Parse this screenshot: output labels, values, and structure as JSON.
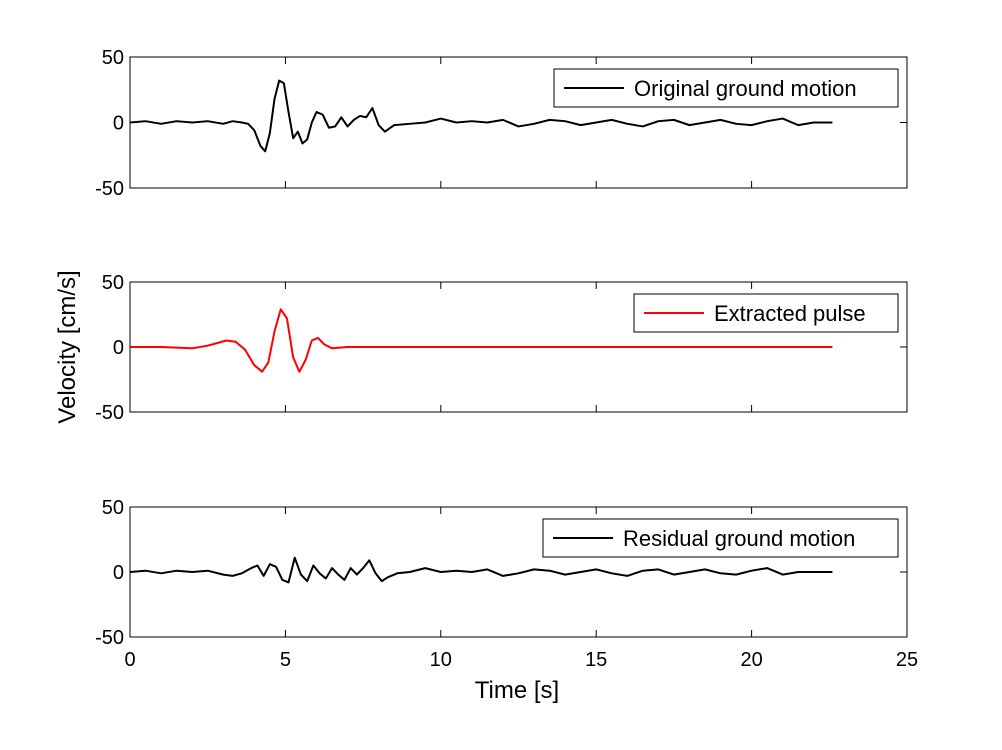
{
  "chart_data": {
    "type": "line",
    "shared_xlabel": "Time [s]",
    "shared_ylabel": "Velocity [cm/s]",
    "x_tick_labels": [
      "0",
      "5",
      "10",
      "15",
      "20",
      "25"
    ],
    "xlim": [
      0,
      25
    ],
    "panels": [
      {
        "ylim": [
          -50,
          50
        ],
        "y_tick_labels": [
          "50",
          "0",
          "-50"
        ],
        "legend": "Original ground motion",
        "legend_position": "top-right",
        "color": "#000000",
        "series": {
          "name": "Original ground motion",
          "x": [
            0,
            0.5,
            1,
            1.5,
            2,
            2.5,
            3,
            3.3,
            3.6,
            3.8,
            4.0,
            4.2,
            4.35,
            4.5,
            4.65,
            4.8,
            4.95,
            5.1,
            5.25,
            5.4,
            5.55,
            5.7,
            5.85,
            6.0,
            6.2,
            6.4,
            6.6,
            6.8,
            7.0,
            7.2,
            7.4,
            7.6,
            7.8,
            8.0,
            8.2,
            8.5,
            9,
            9.5,
            10,
            10.5,
            11,
            11.5,
            12,
            12.5,
            13,
            13.5,
            14,
            14.5,
            15,
            15.5,
            16,
            16.5,
            17,
            17.5,
            18,
            18.5,
            19,
            19.5,
            20,
            20.5,
            21,
            21.5,
            22,
            22.6
          ],
          "y": [
            0,
            1,
            -1,
            1,
            0,
            1,
            -1,
            1,
            0,
            -1,
            -6,
            -18,
            -22,
            -8,
            18,
            32,
            30,
            8,
            -12,
            -7,
            -16,
            -13,
            0,
            8,
            6,
            -4,
            -3,
            4,
            -3,
            2,
            5,
            4,
            11,
            -2,
            -7,
            -2,
            -1,
            0,
            3,
            0,
            1,
            0,
            2,
            -3,
            -1,
            2,
            1,
            -2,
            0,
            2,
            -1,
            -3,
            1,
            2,
            -2,
            0,
            2,
            -1,
            -2,
            1,
            3,
            -2,
            0,
            0
          ]
        }
      },
      {
        "ylim": [
          -50,
          50
        ],
        "y_tick_labels": [
          "50",
          "0",
          "-50"
        ],
        "legend": "Extracted pulse",
        "legend_position": "top-right",
        "color": "#ff0000",
        "series": {
          "name": "Extracted pulse",
          "x": [
            0,
            1,
            1.5,
            2,
            2.5,
            2.8,
            3.1,
            3.4,
            3.7,
            4.0,
            4.25,
            4.45,
            4.65,
            4.85,
            5.05,
            5.25,
            5.45,
            5.65,
            5.85,
            6.05,
            6.25,
            6.5,
            7,
            7.5,
            8,
            8.5,
            10,
            15,
            20,
            22.6
          ],
          "y": [
            0,
            0,
            -0.5,
            -1,
            1,
            3,
            5,
            4,
            -2,
            -14,
            -19,
            -12,
            12,
            29,
            22,
            -8,
            -19,
            -10,
            5,
            7,
            2,
            -1,
            0,
            0,
            0,
            0,
            0,
            0,
            0,
            0
          ]
        }
      },
      {
        "ylim": [
          -50,
          50
        ],
        "y_tick_labels": [
          "50",
          "0",
          "-50"
        ],
        "legend": "Residual ground motion",
        "legend_position": "top-right",
        "color": "#000000",
        "series": {
          "name": "Residual ground motion",
          "x": [
            0,
            0.5,
            1,
            1.5,
            2,
            2.5,
            3,
            3.3,
            3.6,
            3.9,
            4.1,
            4.3,
            4.5,
            4.7,
            4.9,
            5.1,
            5.3,
            5.5,
            5.7,
            5.9,
            6.1,
            6.3,
            6.5,
            6.7,
            6.9,
            7.1,
            7.3,
            7.5,
            7.7,
            7.9,
            8.1,
            8.3,
            8.6,
            9,
            9.5,
            10,
            10.5,
            11,
            11.5,
            12,
            12.5,
            13,
            13.5,
            14,
            14.5,
            15,
            15.5,
            16,
            16.5,
            17,
            17.5,
            18,
            18.5,
            19,
            19.5,
            20,
            20.5,
            21,
            21.5,
            22,
            22.6
          ],
          "y": [
            0,
            1,
            -1,
            1,
            0,
            1,
            -2,
            -3,
            -1,
            3,
            5,
            -3,
            6,
            4,
            -6,
            -8,
            11,
            -2,
            -7,
            5,
            -1,
            -5,
            3,
            -2,
            -6,
            3,
            -2,
            3,
            9,
            -1,
            -7,
            -4,
            -1,
            0,
            3,
            0,
            1,
            0,
            2,
            -3,
            -1,
            2,
            1,
            -2,
            0,
            2,
            -1,
            -3,
            1,
            2,
            -2,
            0,
            2,
            -1,
            -2,
            1,
            3,
            -2,
            0,
            0,
            0
          ]
        }
      }
    ]
  }
}
